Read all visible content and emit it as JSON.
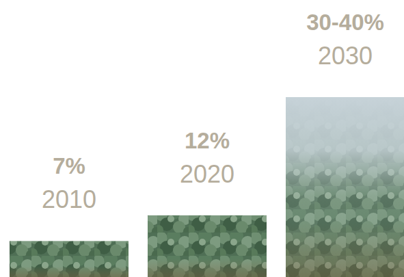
{
  "chart_data": {
    "type": "bar",
    "categories": [
      "2010",
      "2020",
      "2030"
    ],
    "values": [
      7,
      12,
      35
    ],
    "value_labels": [
      "7%",
      "12%",
      "30-40%"
    ],
    "ylim": [
      0,
      35
    ],
    "data_labels": true,
    "tick_labels": "x"
  }
}
